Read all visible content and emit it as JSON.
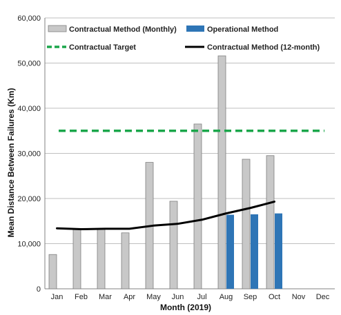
{
  "chart_data": {
    "type": "bar",
    "categories": [
      "Jan",
      "Feb",
      "Mar",
      "Apr",
      "May",
      "Jun",
      "Jul",
      "Aug",
      "Sep",
      "Oct",
      "Nov",
      "Dec"
    ],
    "series": [
      {
        "name": "Contractual Method (Monthly)",
        "kind": "bar",
        "color": "#c8c8c8",
        "values": [
          7600,
          13300,
          13200,
          12400,
          28000,
          19400,
          36500,
          51600,
          28700,
          29500,
          null,
          null
        ]
      },
      {
        "name": "Operational Method",
        "kind": "bar",
        "color": "#2e75b6",
        "values": [
          null,
          null,
          null,
          null,
          null,
          null,
          null,
          16400,
          16500,
          16700,
          null,
          null
        ]
      },
      {
        "name": "Contractual Target",
        "kind": "line",
        "style": "dashed",
        "color": "#1aa64a",
        "values": [
          35000,
          35000,
          35000,
          35000,
          35000,
          35000,
          35000,
          35000,
          35000,
          35000,
          35000,
          35000
        ]
      },
      {
        "name": "Contractual Method (12-month)",
        "kind": "line",
        "style": "solid",
        "color": "#000000",
        "values": [
          13400,
          13200,
          13300,
          13300,
          14000,
          14400,
          15300,
          16700,
          17900,
          19300,
          null,
          null
        ]
      }
    ],
    "xlabel": "Month (2019)",
    "ylabel": "Mean Distance Between Failures (Km)",
    "ylim": [
      0,
      60000
    ],
    "yticks": [
      0,
      10000,
      20000,
      30000,
      40000,
      50000,
      60000
    ],
    "ytick_labels": [
      "0",
      "10,000",
      "20,000",
      "30,000",
      "40,000",
      "50,000",
      "60,000"
    ],
    "grid": "horizontal",
    "legend_position": "top",
    "legend_items": [
      "Contractual Method (Monthly)",
      "Operational Method",
      "Contractual Target",
      "Contractual Method (12-month)"
    ]
  }
}
